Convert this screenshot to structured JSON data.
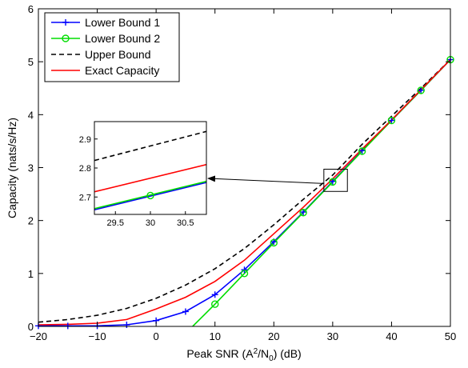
{
  "chart_data": {
    "type": "line",
    "title": "",
    "xlabel_parts": [
      "Peak SNR (A",
      "2",
      "/N",
      "0",
      ") (dB)"
    ],
    "ylabel": "Capacity (nats/s/Hz)",
    "xlim": [
      -20,
      50
    ],
    "ylim": [
      0,
      6
    ],
    "xticks": [
      "−20",
      "−10",
      "0",
      "10",
      "20",
      "30",
      "40",
      "50"
    ],
    "yticks": [
      "0",
      "1",
      "2",
      "3",
      "4",
      "5",
      "6"
    ],
    "grid": false,
    "legend_position": "top-left",
    "series": [
      {
        "name": "Lower Bound 1",
        "color": "#0000ff",
        "dash": "solid",
        "marker": "plus",
        "x": [
          -20,
          -15,
          -10,
          -5,
          0,
          5,
          10,
          15,
          20,
          25,
          30,
          35,
          40,
          45,
          50
        ],
        "y": [
          0.01,
          0.01,
          0.01,
          0.03,
          0.11,
          0.28,
          0.6,
          1.07,
          1.6,
          2.16,
          2.74,
          3.32,
          3.89,
          4.46,
          5.04
        ]
      },
      {
        "name": "Lower Bound 2",
        "color": "#00dd00",
        "dash": "solid",
        "marker": "circle",
        "x": [
          6.2,
          10,
          15,
          20,
          25,
          30,
          35,
          40,
          45,
          50
        ],
        "y": [
          0.0,
          0.42,
          1.0,
          1.58,
          2.15,
          2.73,
          3.31,
          3.89,
          4.46,
          5.04
        ],
        "marker_x": [
          10,
          15,
          20,
          25,
          30,
          35,
          40,
          45,
          50
        ],
        "marker_y": [
          0.42,
          1.0,
          1.58,
          2.15,
          2.73,
          3.31,
          3.89,
          4.46,
          5.04
        ]
      },
      {
        "name": "Upper Bound",
        "color": "#000000",
        "dash": "dashed",
        "marker": "none",
        "x": [
          -20,
          -15,
          -10,
          -5,
          0,
          5,
          10,
          15,
          20,
          25,
          30,
          35,
          40,
          45,
          50
        ],
        "y": [
          0.08,
          0.13,
          0.21,
          0.34,
          0.53,
          0.78,
          1.09,
          1.47,
          1.92,
          2.4,
          2.86,
          3.44,
          3.97,
          4.5,
          5.04
        ]
      },
      {
        "name": "Exact Capacity",
        "color": "#ff0000",
        "dash": "solid",
        "marker": "none",
        "x": [
          -20,
          -15,
          -10,
          -5,
          0,
          5,
          10,
          15,
          20,
          25,
          30,
          35,
          40,
          45,
          50
        ],
        "y": [
          0.03,
          0.04,
          0.06,
          0.13,
          0.33,
          0.55,
          0.85,
          1.25,
          1.75,
          2.25,
          2.79,
          3.35,
          3.9,
          4.47,
          5.04
        ]
      }
    ],
    "inset": {
      "xlim": [
        29.2,
        30.8
      ],
      "ylim": [
        2.64,
        2.96
      ],
      "xticks": [
        "29.5",
        "30",
        "30.5"
      ],
      "yticks": [
        "2.7",
        "2.8",
        "2.9"
      ],
      "zoom_box": {
        "xlim": [
          28.5,
          32.5
        ],
        "ylim": [
          2.55,
          2.97
        ]
      },
      "series": [
        {
          "name": "Upper Bound",
          "color": "#000000",
          "dash": "dashed",
          "x": [
            29.2,
            30.8
          ],
          "y": [
            2.826,
            2.926
          ]
        },
        {
          "name": "Exact Capacity",
          "color": "#ff0000",
          "dash": "solid",
          "x": [
            29.2,
            30.8
          ],
          "y": [
            2.718,
            2.812
          ]
        },
        {
          "name": "Lower Bound 1",
          "color": "#0000ff",
          "dash": "solid",
          "x": [
            29.2,
            30.8
          ],
          "y": [
            2.656,
            2.75
          ]
        },
        {
          "name": "Lower Bound 2",
          "color": "#00dd00",
          "dash": "solid",
          "x": [
            29.2,
            30.8
          ],
          "y": [
            2.66,
            2.754
          ]
        }
      ],
      "marker": {
        "x": 30,
        "y": 2.705,
        "color": "#00dd00"
      }
    }
  }
}
